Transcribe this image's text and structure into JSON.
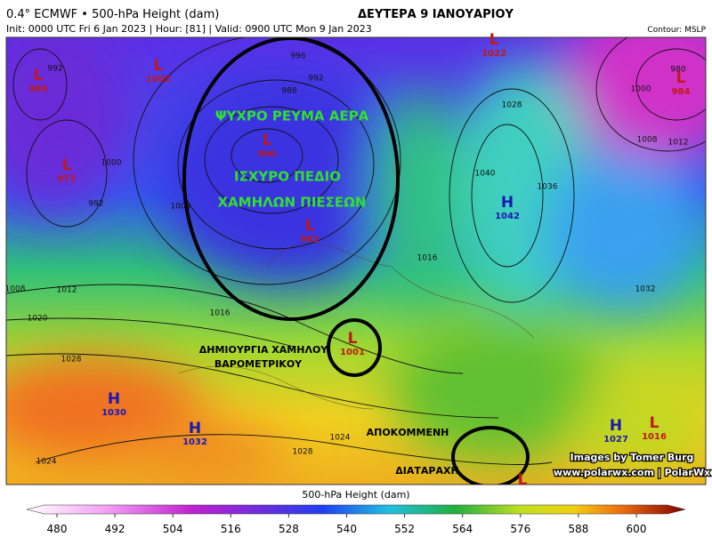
{
  "header": {
    "title": "0.4° ECMWF • 500-hPa Height (dam)",
    "headline": "ΔΕΥΤΕΡΑ 9 ΙΑΝΟΥΑΡΙΟΥ",
    "subtitle": "Init: 0000 UTC Fri 6 Jan 2023 | Hour: [81] | Valid: 0900 UTC Mon 9 Jan 2023",
    "contour": "Contour: MSLP"
  },
  "centers": [
    {
      "letter": "L",
      "value": "986"
    },
    {
      "letter": "L",
      "value": "1002"
    },
    {
      "letter": "L",
      "value": "1022"
    },
    {
      "letter": "L",
      "value": "984"
    },
    {
      "letter": "L",
      "value": "972"
    },
    {
      "letter": "L",
      "value": "960"
    },
    {
      "letter": "L",
      "value": "962"
    },
    {
      "letter": "H",
      "value": "1042"
    },
    {
      "letter": "L",
      "value": "1001"
    },
    {
      "letter": "H",
      "value": "1030"
    },
    {
      "letter": "H",
      "value": "1032"
    },
    {
      "letter": "H",
      "value": "1027"
    },
    {
      "letter": "L",
      "value": "1016"
    },
    {
      "letter": "L"
    }
  ],
  "isobar_labels": [
    "992",
    "996",
    "992",
    "988",
    "1000",
    "992",
    "1004",
    "1008",
    "1012",
    "1016",
    "1020",
    "1028",
    "1024",
    "1028",
    "1024",
    "1016",
    "1040",
    "1036",
    "1028",
    "1000",
    "1008",
    "1012",
    "1032",
    "980"
  ],
  "annotations": [
    "ΨΥΧΡΟ ΡΕΥΜΑ ΑΕΡΑ",
    "ΙΣΧΥΡΟ ΠΕΔΙΟ",
    "ΧΑΜΗΛΩΝ ΠΙΕΣΕΩΝ",
    "ΔΗΜΙΟΥΡΓΙΑ ΧΑΜΗΛΟΥ",
    "ΒΑΡΟΜΕΤΡΙΚΟΥ",
    "ΑΠΟΚΟΜΜΕΝΗ",
    "ΔΙΑΤΑΡΑΧΗ"
  ],
  "watermark": [
    "Images by Tomer Burg",
    "www.polarwx.com | PolarWx"
  ],
  "colorbar": {
    "title": "500-hPa Height (dam)",
    "ticks": [
      480,
      492,
      504,
      516,
      528,
      540,
      552,
      564,
      576,
      588,
      600
    ]
  }
}
